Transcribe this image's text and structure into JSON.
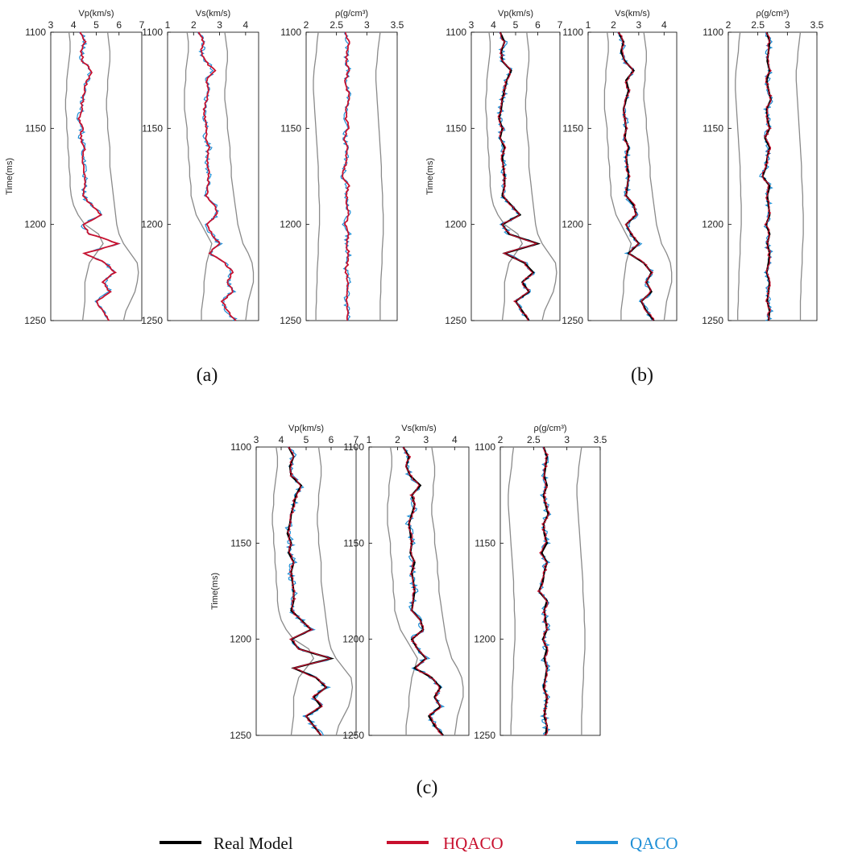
{
  "chart_data": [
    {
      "panel": "(a)",
      "type": "line",
      "ylabel": "Time(ms)",
      "ylim": [
        1100,
        1250
      ],
      "yticks": [
        "1100",
        "1150",
        "1200",
        "1250"
      ],
      "tracks": [
        {
          "key": "vp",
          "xlabel": "Vp(km/s)",
          "xlim": [
            3,
            7
          ],
          "xticks": [
            "3",
            "4",
            "5",
            "6",
            "7"
          ]
        },
        {
          "key": "vs",
          "xlabel": "Vs(km/s)",
          "xlim": [
            1,
            4.5
          ],
          "xticks": [
            "1",
            "2",
            "3",
            "4"
          ]
        },
        {
          "key": "rho",
          "xlabel": "ρ(g/cm³)",
          "xlim": [
            2,
            3.5
          ],
          "xticks": [
            "2",
            "2.5",
            "3",
            "3.5"
          ]
        }
      ],
      "real_model_visible": false
    },
    {
      "panel": "(b)",
      "type": "line",
      "ylabel": "Time(ms)",
      "ylim": [
        1100,
        1250
      ],
      "yticks": [
        "1100",
        "1150",
        "1200",
        "1250"
      ],
      "tracks": [
        {
          "key": "vp",
          "xlabel": "Vp(km/s)",
          "xlim": [
            3,
            7
          ],
          "xticks": [
            "3",
            "4",
            "5",
            "6",
            "7"
          ]
        },
        {
          "key": "vs",
          "xlabel": "Vs(km/s)",
          "xlim": [
            1,
            4.5
          ],
          "xticks": [
            "1",
            "2",
            "3",
            "4"
          ]
        },
        {
          "key": "rho",
          "xlabel": "ρ(g/cm³)",
          "xlim": [
            2,
            3.5
          ],
          "xticks": [
            "2",
            "2.5",
            "3",
            "3.5"
          ]
        }
      ],
      "real_model_visible": true
    },
    {
      "panel": "(c)",
      "type": "line",
      "ylabel": "Time(ms)",
      "ylim": [
        1100,
        1250
      ],
      "yticks": [
        "1100",
        "1150",
        "1200",
        "1250"
      ],
      "tracks": [
        {
          "key": "vp",
          "xlabel": "Vp(km/s)",
          "xlim": [
            3,
            7
          ],
          "xticks": [
            "3",
            "4",
            "5",
            "6",
            "7"
          ]
        },
        {
          "key": "vs",
          "xlabel": "Vs(km/s)",
          "xlim": [
            1,
            4.5
          ],
          "xticks": [
            "1",
            "2",
            "3",
            "4"
          ]
        },
        {
          "key": "rho",
          "xlabel": "ρ(g/cm³)",
          "xlim": [
            2,
            3.5
          ],
          "xticks": [
            "2",
            "2.5",
            "3",
            "3.5"
          ]
        }
      ],
      "real_model_visible": true
    }
  ],
  "profiles": {
    "time": [
      1100,
      1105,
      1110,
      1115,
      1120,
      1125,
      1130,
      1135,
      1140,
      1145,
      1150,
      1155,
      1160,
      1165,
      1170,
      1175,
      1180,
      1185,
      1190,
      1195,
      1200,
      1205,
      1210,
      1215,
      1220,
      1225,
      1230,
      1235,
      1240,
      1245,
      1250
    ],
    "vp": {
      "real": [
        4.3,
        4.5,
        4.35,
        4.4,
        4.8,
        4.6,
        4.5,
        4.4,
        4.35,
        4.25,
        4.4,
        4.3,
        4.5,
        4.4,
        4.45,
        4.5,
        4.5,
        4.4,
        4.8,
        5.2,
        4.4,
        4.7,
        6.0,
        4.5,
        5.4,
        5.8,
        5.3,
        5.6,
        5.0,
        5.3,
        5.6
      ],
      "low": [
        3.8,
        3.85,
        3.85,
        3.8,
        3.75,
        3.7,
        3.7,
        3.65,
        3.65,
        3.7,
        3.7,
        3.75,
        3.75,
        3.8,
        3.8,
        3.85,
        3.85,
        3.9,
        4.0,
        4.2,
        4.5,
        5.1,
        5.3,
        5.0,
        4.7,
        4.6,
        4.5,
        4.5,
        4.5,
        4.45,
        4.4
      ],
      "high": [
        5.5,
        5.55,
        5.6,
        5.6,
        5.55,
        5.5,
        5.5,
        5.45,
        5.45,
        5.5,
        5.5,
        5.55,
        5.6,
        5.6,
        5.6,
        5.65,
        5.7,
        5.75,
        5.8,
        5.85,
        5.9,
        6.0,
        6.2,
        6.5,
        6.8,
        6.85,
        6.8,
        6.7,
        6.5,
        6.3,
        6.2
      ]
    },
    "vs": {
      "real": [
        2.2,
        2.4,
        2.3,
        2.45,
        2.8,
        2.5,
        2.6,
        2.5,
        2.4,
        2.45,
        2.5,
        2.45,
        2.6,
        2.5,
        2.55,
        2.6,
        2.55,
        2.5,
        2.8,
        2.9,
        2.5,
        2.7,
        3.0,
        2.6,
        3.2,
        3.5,
        3.3,
        3.5,
        3.1,
        3.3,
        3.6
      ],
      "low": [
        1.75,
        1.8,
        1.8,
        1.75,
        1.7,
        1.7,
        1.65,
        1.65,
        1.65,
        1.7,
        1.75,
        1.75,
        1.8,
        1.8,
        1.85,
        1.85,
        1.9,
        1.9,
        2.0,
        2.1,
        2.3,
        2.5,
        2.7,
        2.6,
        2.5,
        2.45,
        2.4,
        2.4,
        2.35,
        2.3,
        2.3
      ],
      "high": [
        3.2,
        3.25,
        3.3,
        3.3,
        3.25,
        3.25,
        3.2,
        3.2,
        3.25,
        3.3,
        3.3,
        3.35,
        3.4,
        3.4,
        3.45,
        3.45,
        3.5,
        3.55,
        3.6,
        3.65,
        3.7,
        3.8,
        3.9,
        4.1,
        4.25,
        4.3,
        4.3,
        4.2,
        4.1,
        4.05,
        4.0
      ]
    },
    "rho": {
      "real": [
        2.65,
        2.7,
        2.68,
        2.66,
        2.7,
        2.65,
        2.68,
        2.72,
        2.65,
        2.66,
        2.7,
        2.62,
        2.7,
        2.66,
        2.64,
        2.58,
        2.7,
        2.66,
        2.68,
        2.7,
        2.64,
        2.7,
        2.66,
        2.7,
        2.68,
        2.65,
        2.7,
        2.68,
        2.66,
        2.7,
        2.68
      ],
      "low": [
        2.2,
        2.18,
        2.17,
        2.15,
        2.13,
        2.12,
        2.12,
        2.13,
        2.14,
        2.15,
        2.16,
        2.17,
        2.18,
        2.19,
        2.2,
        2.2,
        2.21,
        2.21,
        2.22,
        2.22,
        2.22,
        2.21,
        2.2,
        2.2,
        2.19,
        2.18,
        2.18,
        2.17,
        2.17,
        2.16,
        2.16
      ],
      "high": [
        3.22,
        3.2,
        3.18,
        3.17,
        3.15,
        3.15,
        3.16,
        3.17,
        3.18,
        3.19,
        3.2,
        3.21,
        3.22,
        3.23,
        3.24,
        3.24,
        3.25,
        3.26,
        3.26,
        3.27,
        3.27,
        3.27,
        3.26,
        3.25,
        3.25,
        3.24,
        3.23,
        3.23,
        3.22,
        3.22,
        3.22
      ]
    }
  },
  "legend": [
    {
      "name": "Real Model",
      "color": "#000000"
    },
    {
      "name": "HQACO",
      "color": "#c8102e"
    },
    {
      "name": "QACO",
      "color": "#1f8fd6"
    }
  ],
  "colors": {
    "real": "#000000",
    "hqaco": "#c8102e",
    "qaco": "#1f8fd6",
    "bounds": "#8a8a8a"
  }
}
